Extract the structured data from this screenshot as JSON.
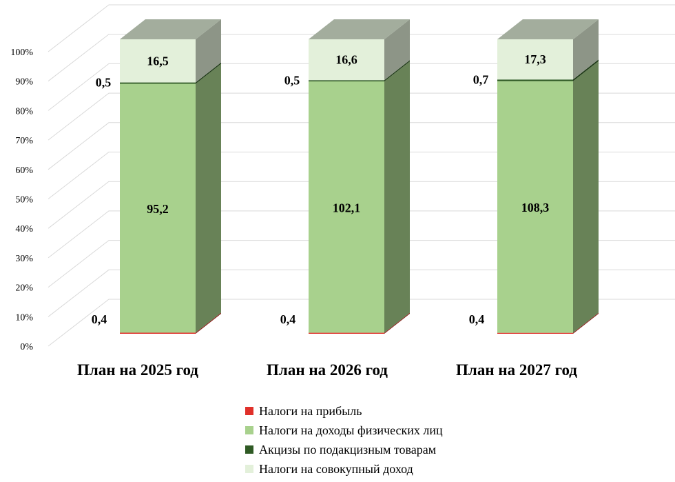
{
  "chart_data": {
    "type": "bar",
    "stacked": "percent",
    "three_d": true,
    "categories": [
      "План на 2025 год",
      "План на 2026 год",
      "План на 2027 год"
    ],
    "series": [
      {
        "name": "Налоги на прибыль",
        "values": [
          0.4,
          0.4,
          0.4
        ],
        "labels": [
          "0,4",
          "0,4",
          "0,4"
        ],
        "color": "#e0302a"
      },
      {
        "name": "Налоги на доходы физических лиц",
        "values": [
          95.2,
          102.1,
          108.3
        ],
        "labels": [
          "95,2",
          "102,1",
          "108,3"
        ],
        "color": "#a8d18d"
      },
      {
        "name": "Акцизы по подакцизным  товарам",
        "values": [
          0.5,
          0.5,
          0.7
        ],
        "labels": [
          "0,5",
          "0,5",
          "0,7"
        ],
        "color": "#2f5a24"
      },
      {
        "name": "Налоги на совокупный доход",
        "values": [
          16.5,
          16.6,
          17.3
        ],
        "labels": [
          "16,5",
          "16,6",
          "17,3"
        ],
        "color": "#e3f0da"
      }
    ],
    "yticks": [
      "0%",
      "10%",
      "20%",
      "30%",
      "40%",
      "50%",
      "60%",
      "70%",
      "80%",
      "90%",
      "100%"
    ],
    "ylim": [
      0,
      100
    ],
    "grid": true,
    "legend": "bottom"
  }
}
